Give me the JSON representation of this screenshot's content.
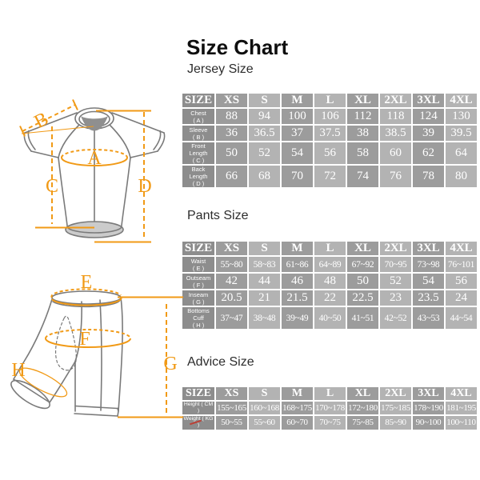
{
  "page": {
    "title": "Size Chart"
  },
  "sections": {
    "jersey": {
      "label": "Jersey Size"
    },
    "pants": {
      "label": "Pants Size"
    },
    "advice": {
      "label": "Advice Size"
    }
  },
  "colors": {
    "accent_orange": "#F19A16",
    "cell_label": "#8d8d8d",
    "cell_dark": "#9c9c9c",
    "cell_light": "#b3b3b3",
    "line_gray": "#7a7a7a"
  },
  "diagram": {
    "jersey_labels": [
      "A",
      "B",
      "C",
      "D"
    ],
    "shorts_labels": [
      "E",
      "F",
      "G",
      "H"
    ]
  },
  "tables": {
    "jersey": {
      "header": [
        "SIZE",
        "XS",
        "S",
        "M",
        "L",
        "XL",
        "2XL",
        "3XL",
        "4XL"
      ],
      "rows": [
        {
          "label": "Chest",
          "sub": "( A )",
          "values": [
            "88",
            "94",
            "100",
            "106",
            "112",
            "118",
            "124",
            "130"
          ]
        },
        {
          "label": "Sleeve",
          "sub": "( B )",
          "values": [
            "36",
            "36.5",
            "37",
            "37.5",
            "38",
            "38.5",
            "39",
            "39.5"
          ]
        },
        {
          "label": "Front Length",
          "sub": "( C )",
          "values": [
            "50",
            "52",
            "54",
            "56",
            "58",
            "60",
            "62",
            "64"
          ]
        },
        {
          "label": "Back Length",
          "sub": "( D )",
          "values": [
            "66",
            "68",
            "70",
            "72",
            "74",
            "76",
            "78",
            "80"
          ]
        }
      ]
    },
    "pants": {
      "header": [
        "SIZE",
        "XS",
        "S",
        "M",
        "L",
        "XL",
        "2XL",
        "3XL",
        "4XL"
      ],
      "rows": [
        {
          "label": "Waist",
          "sub": "( E )",
          "values": [
            "55~80",
            "58~83",
            "61~86",
            "64~89",
            "67~92",
            "70~95",
            "73~98",
            "76~101"
          ]
        },
        {
          "label": "Outseam",
          "sub": "( F )",
          "values": [
            "42",
            "44",
            "46",
            "48",
            "50",
            "52",
            "54",
            "56"
          ]
        },
        {
          "label": "Inseam",
          "sub": "( G )",
          "values": [
            "20.5",
            "21",
            "21.5",
            "22",
            "22.5",
            "23",
            "23.5",
            "24"
          ]
        },
        {
          "label": "Bottoms Cuff",
          "sub": "( H )",
          "values": [
            "37~47",
            "38~48",
            "39~49",
            "40~50",
            "41~51",
            "42~52",
            "43~53",
            "44~54"
          ]
        }
      ]
    },
    "advice": {
      "header": [
        "SIZE",
        "XS",
        "S",
        "M",
        "L",
        "XL",
        "2XL",
        "3XL",
        "4XL"
      ],
      "rows": [
        {
          "label": "Height ( CM )",
          "sub": "",
          "values": [
            "155~165",
            "160~168",
            "168~175",
            "170~178",
            "172~180",
            "175~185",
            "178~190",
            "181~195"
          ]
        },
        {
          "label": "Weight ( KG )",
          "sub": "",
          "strike": true,
          "values": [
            "50~55",
            "55~60",
            "60~70",
            "70~75",
            "75~85",
            "85~90",
            "90~100",
            "100~110"
          ]
        }
      ]
    }
  }
}
